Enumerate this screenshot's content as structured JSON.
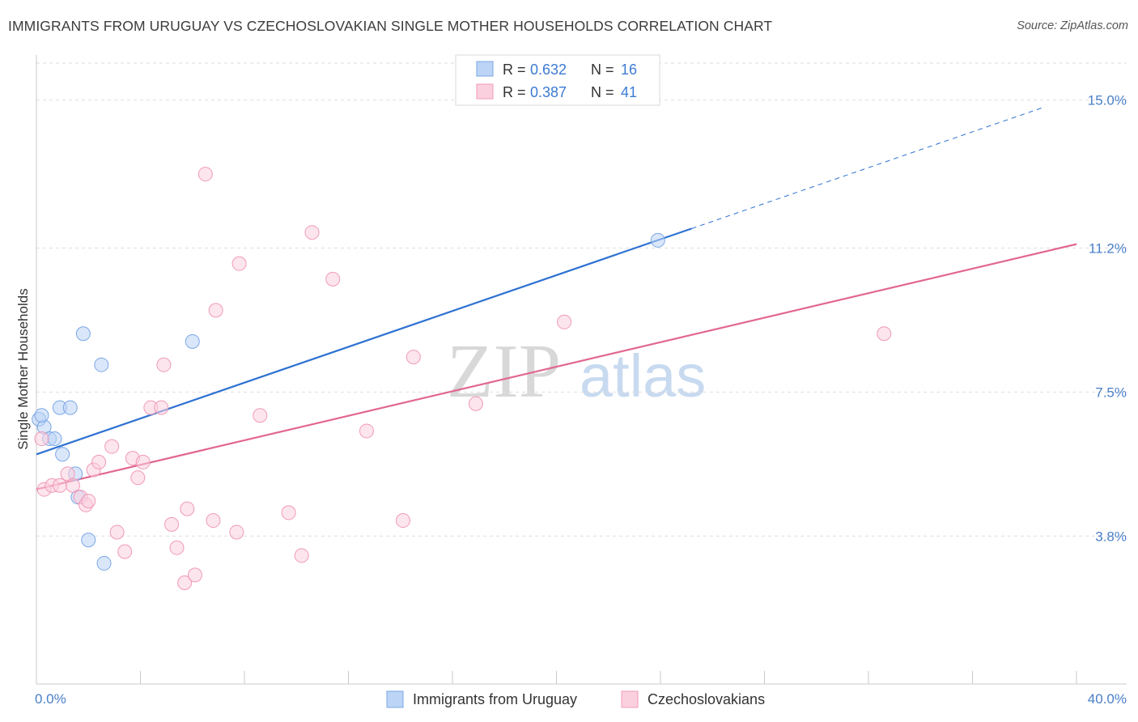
{
  "title": "IMMIGRANTS FROM URUGUAY VS CZECHOSLOVAKIAN SINGLE MOTHER HOUSEHOLDS CORRELATION CHART",
  "source": "Source: ZipAtlas.com",
  "watermark": {
    "zip": "ZIP",
    "atlas": "atlas"
  },
  "chart_data": {
    "type": "scatter",
    "ylabel": "Single Mother Households",
    "xlabel": "",
    "xlim": [
      0,
      40
    ],
    "ylim": [
      0,
      16.2
    ],
    "x_tick_labels": {
      "left": "0.0%",
      "right": "40.0%"
    },
    "y_ticks": [
      {
        "value": 3.8,
        "label": "3.8%"
      },
      {
        "value": 7.5,
        "label": "7.5%"
      },
      {
        "value": 11.2,
        "label": "11.2%"
      },
      {
        "value": 15.0,
        "label": "15.0%"
      }
    ],
    "legend": {
      "entries": [
        {
          "r_label": "R =",
          "r_value": "0.632",
          "n_label": "N =",
          "n_value": "16"
        },
        {
          "r_label": "R =",
          "r_value": "0.387",
          "n_label": "N =",
          "n_value": "41"
        }
      ]
    },
    "series": [
      {
        "name": "Immigrants from Uruguay",
        "color": "#7aa7e6",
        "line_color": "#2f72d2",
        "trend": {
          "x0": 0,
          "y0": 5.9,
          "x1": 25.2,
          "y1": 11.7,
          "x_dash_end": 38.8
        },
        "points": [
          [
            0.1,
            6.8
          ],
          [
            0.3,
            6.6
          ],
          [
            0.5,
            6.3
          ],
          [
            0.7,
            6.3
          ],
          [
            0.9,
            7.1
          ],
          [
            1.0,
            5.9
          ],
          [
            1.3,
            7.1
          ],
          [
            1.5,
            5.4
          ],
          [
            1.6,
            4.8
          ],
          [
            1.8,
            9.0
          ],
          [
            2.0,
            3.7
          ],
          [
            2.5,
            8.2
          ],
          [
            2.6,
            3.1
          ],
          [
            6.0,
            8.8
          ],
          [
            23.9,
            11.4
          ],
          [
            0.2,
            6.9
          ]
        ]
      },
      {
        "name": "Czechoslovakians",
        "color": "#f09ab8",
        "line_color": "#e2678f",
        "trend": {
          "x0": 0,
          "y0": 5.0,
          "x1": 40,
          "y1": 11.3
        },
        "points": [
          [
            0.2,
            6.3
          ],
          [
            0.3,
            5.0
          ],
          [
            0.6,
            5.1
          ],
          [
            0.9,
            5.1
          ],
          [
            1.2,
            5.4
          ],
          [
            1.4,
            5.1
          ],
          [
            1.7,
            4.8
          ],
          [
            1.9,
            4.6
          ],
          [
            2.2,
            5.5
          ],
          [
            2.4,
            5.7
          ],
          [
            2.9,
            6.1
          ],
          [
            3.1,
            3.9
          ],
          [
            3.4,
            3.4
          ],
          [
            3.7,
            5.8
          ],
          [
            3.9,
            5.3
          ],
          [
            4.1,
            5.7
          ],
          [
            4.4,
            7.1
          ],
          [
            4.8,
            7.1
          ],
          [
            4.9,
            8.2
          ],
          [
            5.2,
            4.1
          ],
          [
            5.4,
            3.5
          ],
          [
            5.7,
            2.6
          ],
          [
            5.8,
            4.5
          ],
          [
            6.1,
            2.8
          ],
          [
            6.5,
            13.1
          ],
          [
            6.8,
            4.2
          ],
          [
            6.9,
            9.6
          ],
          [
            7.7,
            3.9
          ],
          [
            7.8,
            10.8
          ],
          [
            8.6,
            6.9
          ],
          [
            9.7,
            4.4
          ],
          [
            10.2,
            3.3
          ],
          [
            10.6,
            11.6
          ],
          [
            11.4,
            10.4
          ],
          [
            12.7,
            6.5
          ],
          [
            14.1,
            4.2
          ],
          [
            14.5,
            8.4
          ],
          [
            16.9,
            7.2
          ],
          [
            20.3,
            9.3
          ],
          [
            32.6,
            9.0
          ],
          [
            2.0,
            4.7
          ]
        ]
      }
    ]
  }
}
